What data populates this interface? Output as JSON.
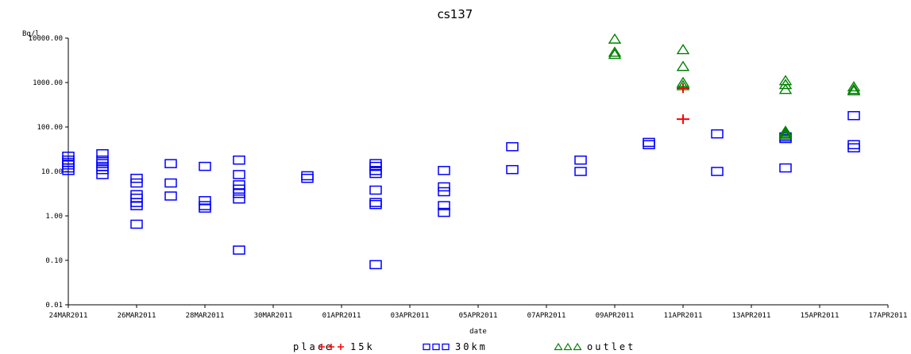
{
  "chart_data": {
    "type": "scatter",
    "title": "cs137",
    "xlabel": "date",
    "ylabel": "Bq/l",
    "yscale": "log",
    "ylim": [
      0.01,
      10000
    ],
    "xlim": [
      "2011-03-24",
      "2011-04-17"
    ],
    "x_tick_labels": [
      "24MAR2011",
      "26MAR2011",
      "28MAR2011",
      "30MAR2011",
      "01APR2011",
      "03APR2011",
      "05APR2011",
      "07APR2011",
      "09APR2011",
      "11APR2011",
      "13APR2011",
      "15APR2011",
      "17APR2011"
    ],
    "y_tick_labels": [
      "0.01",
      "0.10",
      "1.00",
      "10.00",
      "100.00",
      "1000.00",
      "10000.00"
    ],
    "legend": {
      "title": "place",
      "position": "bottom"
    },
    "series": [
      {
        "name": "15k",
        "marker": "plus",
        "color": "#ff0000",
        "points": [
          {
            "x": "2011-04-11",
            "y": 750
          },
          {
            "x": "2011-04-11",
            "y": 150
          }
        ]
      },
      {
        "name": "30km",
        "marker": "square",
        "color": "#0000ff",
        "points": [
          {
            "x": "2011-03-24",
            "y": 22
          },
          {
            "x": "2011-03-24",
            "y": 18
          },
          {
            "x": "2011-03-24",
            "y": 16
          },
          {
            "x": "2011-03-24",
            "y": 14
          },
          {
            "x": "2011-03-24",
            "y": 12
          },
          {
            "x": "2011-03-24",
            "y": 10.5
          },
          {
            "x": "2011-03-25",
            "y": 25
          },
          {
            "x": "2011-03-25",
            "y": 18
          },
          {
            "x": "2011-03-25",
            "y": 15
          },
          {
            "x": "2011-03-25",
            "y": 13
          },
          {
            "x": "2011-03-25",
            "y": 11
          },
          {
            "x": "2011-03-25",
            "y": 8.5
          },
          {
            "x": "2011-03-26",
            "y": 7
          },
          {
            "x": "2011-03-26",
            "y": 5.5
          },
          {
            "x": "2011-03-26",
            "y": 3
          },
          {
            "x": "2011-03-26",
            "y": 2.5
          },
          {
            "x": "2011-03-26",
            "y": 2
          },
          {
            "x": "2011-03-26",
            "y": 1.7
          },
          {
            "x": "2011-03-26",
            "y": 0.65
          },
          {
            "x": "2011-03-27",
            "y": 15
          },
          {
            "x": "2011-03-27",
            "y": 5.5
          },
          {
            "x": "2011-03-27",
            "y": 2.8
          },
          {
            "x": "2011-03-28",
            "y": 13
          },
          {
            "x": "2011-03-28",
            "y": 2.2
          },
          {
            "x": "2011-03-28",
            "y": 1.7
          },
          {
            "x": "2011-03-28",
            "y": 1.5
          },
          {
            "x": "2011-03-29",
            "y": 18
          },
          {
            "x": "2011-03-29",
            "y": 8.5
          },
          {
            "x": "2011-03-29",
            "y": 5
          },
          {
            "x": "2011-03-29",
            "y": 4
          },
          {
            "x": "2011-03-29",
            "y": 3.2
          },
          {
            "x": "2011-03-29",
            "y": 2.4
          },
          {
            "x": "2011-03-29",
            "y": 0.17
          },
          {
            "x": "2011-03-31",
            "y": 8
          },
          {
            "x": "2011-03-31",
            "y": 7
          },
          {
            "x": "2011-04-02",
            "y": 15
          },
          {
            "x": "2011-04-02",
            "y": 13
          },
          {
            "x": "2011-04-02",
            "y": 10.5
          },
          {
            "x": "2011-04-02",
            "y": 9
          },
          {
            "x": "2011-04-02",
            "y": 3.8
          },
          {
            "x": "2011-04-02",
            "y": 2
          },
          {
            "x": "2011-04-02",
            "y": 1.8
          },
          {
            "x": "2011-04-02",
            "y": 0.08
          },
          {
            "x": "2011-04-04",
            "y": 10.5
          },
          {
            "x": "2011-04-04",
            "y": 4.5
          },
          {
            "x": "2011-04-04",
            "y": 3.5
          },
          {
            "x": "2011-04-04",
            "y": 1.7
          },
          {
            "x": "2011-04-04",
            "y": 1.2
          },
          {
            "x": "2011-04-06",
            "y": 36
          },
          {
            "x": "2011-04-06",
            "y": 11
          },
          {
            "x": "2011-04-08",
            "y": 18
          },
          {
            "x": "2011-04-08",
            "y": 10
          },
          {
            "x": "2011-04-10",
            "y": 45
          },
          {
            "x": "2011-04-10",
            "y": 40
          },
          {
            "x": "2011-04-12",
            "y": 70
          },
          {
            "x": "2011-04-12",
            "y": 10
          },
          {
            "x": "2011-04-14",
            "y": 60
          },
          {
            "x": "2011-04-14",
            "y": 55
          },
          {
            "x": "2011-04-14",
            "y": 12
          },
          {
            "x": "2011-04-16",
            "y": 180
          },
          {
            "x": "2011-04-16",
            "y": 40
          },
          {
            "x": "2011-04-16",
            "y": 34
          }
        ]
      },
      {
        "name": "outlet",
        "marker": "triangle",
        "color": "#008000",
        "points": [
          {
            "x": "2011-04-09",
            "y": 9500
          },
          {
            "x": "2011-04-09",
            "y": 4800
          },
          {
            "x": "2011-04-09",
            "y": 4300
          },
          {
            "x": "2011-04-11",
            "y": 5500
          },
          {
            "x": "2011-04-11",
            "y": 2300
          },
          {
            "x": "2011-04-11",
            "y": 1000
          },
          {
            "x": "2011-04-11",
            "y": 850
          },
          {
            "x": "2011-04-14",
            "y": 1100
          },
          {
            "x": "2011-04-14",
            "y": 900
          },
          {
            "x": "2011-04-14",
            "y": 700
          },
          {
            "x": "2011-04-14",
            "y": 80
          },
          {
            "x": "2011-04-14",
            "y": 75
          },
          {
            "x": "2011-04-14",
            "y": 70
          },
          {
            "x": "2011-04-14",
            "y": 65
          },
          {
            "x": "2011-04-16",
            "y": 800
          },
          {
            "x": "2011-04-16",
            "y": 700
          },
          {
            "x": "2011-04-16",
            "y": 650
          }
        ]
      }
    ]
  }
}
